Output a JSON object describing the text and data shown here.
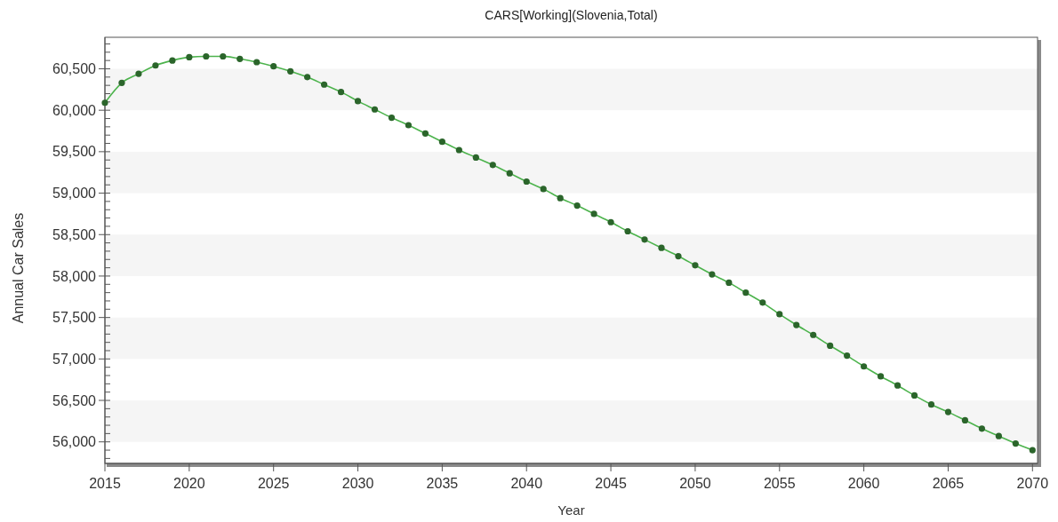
{
  "chart_data": {
    "type": "line",
    "title": "CARS[Working](Slovenia,Total)",
    "xlabel": "Year",
    "ylabel": "Annual Car Sales",
    "x": [
      2015,
      2016,
      2017,
      2018,
      2019,
      2020,
      2021,
      2022,
      2023,
      2024,
      2025,
      2026,
      2027,
      2028,
      2029,
      2030,
      2031,
      2032,
      2033,
      2034,
      2035,
      2036,
      2037,
      2038,
      2039,
      2040,
      2041,
      2042,
      2043,
      2044,
      2045,
      2046,
      2047,
      2048,
      2049,
      2050,
      2051,
      2052,
      2053,
      2054,
      2055,
      2056,
      2057,
      2058,
      2059,
      2060,
      2061,
      2062,
      2063,
      2064,
      2065,
      2066,
      2067,
      2068,
      2069,
      2070
    ],
    "series": [
      {
        "color": "#4cb34c",
        "values": [
          60090,
          60330,
          60440,
          60540,
          60600,
          60640,
          60650,
          60650,
          60620,
          60580,
          60530,
          60470,
          60400,
          60310,
          60220,
          60110,
          60010,
          59910,
          59820,
          59720,
          59620,
          59520,
          59430,
          59340,
          59240,
          59140,
          59050,
          58940,
          58850,
          58750,
          58650,
          58540,
          58440,
          58340,
          58240,
          58130,
          58020,
          57920,
          57800,
          57680,
          57540,
          57410,
          57290,
          57160,
          57040,
          56910,
          56790,
          56680,
          56560,
          56450,
          56360,
          56260,
          56160,
          56070,
          55980,
          55900
        ]
      }
    ],
    "xlim": [
      2015,
      2070.3
    ],
    "ylim": [
      55740,
      60880
    ],
    "xticks": [
      2015,
      2020,
      2025,
      2030,
      2035,
      2040,
      2045,
      2050,
      2055,
      2060,
      2065,
      2070
    ],
    "yticks": [
      {
        "value": 55800,
        "label": null
      },
      {
        "value": 55900,
        "label": null
      },
      {
        "value": 56000,
        "label": "56,000"
      },
      {
        "value": 56100,
        "label": null
      },
      {
        "value": 56200,
        "label": null
      },
      {
        "value": 56300,
        "label": null
      },
      {
        "value": 56400,
        "label": null
      },
      {
        "value": 56500,
        "label": "56,500"
      },
      {
        "value": 56600,
        "label": null
      },
      {
        "value": 56700,
        "label": null
      },
      {
        "value": 56800,
        "label": null
      },
      {
        "value": 56900,
        "label": null
      },
      {
        "value": 57000,
        "label": "57,000"
      },
      {
        "value": 57100,
        "label": null
      },
      {
        "value": 57200,
        "label": null
      },
      {
        "value": 57300,
        "label": null
      },
      {
        "value": 57400,
        "label": null
      },
      {
        "value": 57500,
        "label": "57,500"
      },
      {
        "value": 57600,
        "label": null
      },
      {
        "value": 57700,
        "label": null
      },
      {
        "value": 57800,
        "label": null
      },
      {
        "value": 57900,
        "label": null
      },
      {
        "value": 58000,
        "label": "58,000"
      },
      {
        "value": 58100,
        "label": null
      },
      {
        "value": 58200,
        "label": null
      },
      {
        "value": 58300,
        "label": null
      },
      {
        "value": 58400,
        "label": null
      },
      {
        "value": 58500,
        "label": "58,500"
      },
      {
        "value": 58600,
        "label": null
      },
      {
        "value": 58700,
        "label": null
      },
      {
        "value": 58800,
        "label": null
      },
      {
        "value": 58900,
        "label": null
      },
      {
        "value": 59000,
        "label": "59,000"
      },
      {
        "value": 59100,
        "label": null
      },
      {
        "value": 59200,
        "label": null
      },
      {
        "value": 59300,
        "label": null
      },
      {
        "value": 59400,
        "label": null
      },
      {
        "value": 59500,
        "label": "59,500"
      },
      {
        "value": 59600,
        "label": null
      },
      {
        "value": 59700,
        "label": null
      },
      {
        "value": 59800,
        "label": null
      },
      {
        "value": 59900,
        "label": null
      },
      {
        "value": 60000,
        "label": "60,000"
      },
      {
        "value": 60100,
        "label": null
      },
      {
        "value": 60200,
        "label": null
      },
      {
        "value": 60300,
        "label": null
      },
      {
        "value": 60400,
        "label": null
      },
      {
        "value": 60500,
        "label": "60,500"
      },
      {
        "value": 60600,
        "label": null
      },
      {
        "value": 60700,
        "label": null
      },
      {
        "value": 60800,
        "label": null
      }
    ],
    "bands": [
      {
        "axis": "y",
        "from": 56000,
        "to": 56500,
        "color": "#f5f5f5"
      },
      {
        "axis": "y",
        "from": 57000,
        "to": 57500,
        "color": "#f5f5f5"
      },
      {
        "axis": "y",
        "from": 58000,
        "to": 58500,
        "color": "#f5f5f5"
      },
      {
        "axis": "y",
        "from": 59000,
        "to": 59500,
        "color": "#f5f5f5"
      },
      {
        "axis": "y",
        "from": 60000,
        "to": 60500,
        "color": "#f5f5f5"
      }
    ],
    "marker": "circle",
    "line_style": "solid"
  }
}
